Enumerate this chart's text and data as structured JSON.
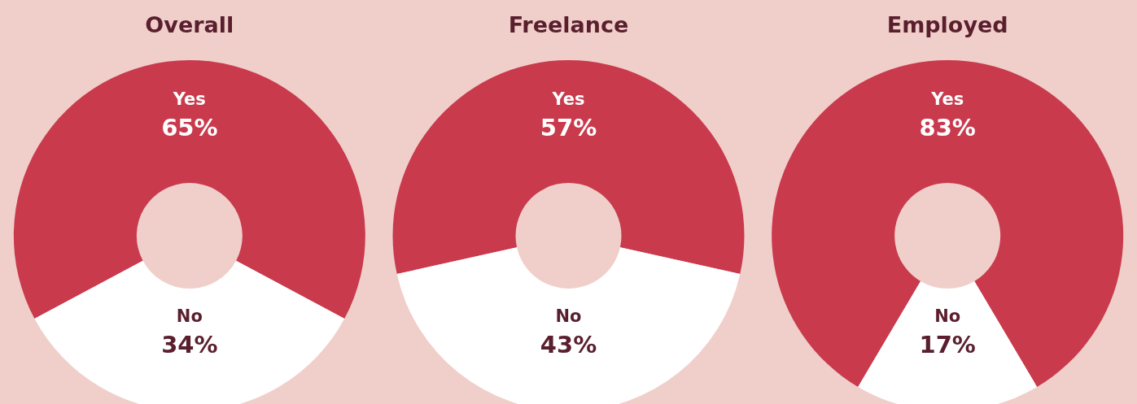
{
  "chart_data": [
    {
      "type": "donut",
      "title": "Overall",
      "categories": [
        "Yes",
        "No"
      ],
      "values": [
        65,
        34
      ],
      "colors": [
        "#c93a4d",
        "#ffffff"
      ],
      "value_labels": [
        "65%",
        "34%"
      ]
    },
    {
      "type": "donut",
      "title": "Freelance",
      "categories": [
        "Yes",
        "No"
      ],
      "values": [
        57,
        43
      ],
      "colors": [
        "#c93a4d",
        "#ffffff"
      ],
      "value_labels": [
        "57%",
        "43%"
      ]
    },
    {
      "type": "donut",
      "title": "Employed",
      "categories": [
        "Yes",
        "No"
      ],
      "values": [
        83,
        17
      ],
      "colors": [
        "#c93a4d",
        "#ffffff"
      ],
      "value_labels": [
        "83%",
        "17%"
      ]
    }
  ]
}
